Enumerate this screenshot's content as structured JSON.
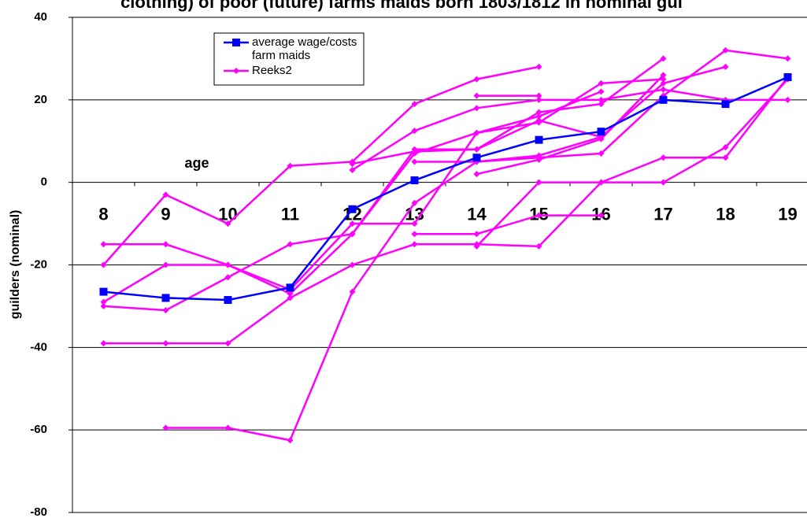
{
  "chart_data": {
    "type": "line",
    "title": "clothing) of poor (future) farms maids born 1803/1812 in nominal gui",
    "x_label": "age",
    "y_label": "guilders (nominal)",
    "categories": [
      "8",
      "9",
      "10",
      "11",
      "12",
      "13",
      "14",
      "15",
      "16",
      "17",
      "18",
      "19"
    ],
    "ylim": [
      -80,
      40
    ],
    "yticks": [
      -80,
      -60,
      -40,
      -20,
      0,
      20,
      40
    ],
    "grid": true,
    "legend": "top-left",
    "series": [
      {
        "name": "average wage/costs farm maids",
        "color": "#0000ff",
        "marker": "square",
        "values": [
          -26.5,
          -28,
          -28.5,
          -25.5,
          -6.5,
          0.5,
          6,
          10.3,
          12.3,
          20,
          19,
          25.5
        ]
      },
      {
        "name": "Reeks2",
        "color": "#ff00ff",
        "marker": "diamond",
        "values": [
          -20,
          -3,
          -10,
          4,
          5,
          19,
          25,
          28,
          null,
          null,
          null,
          null
        ]
      },
      {
        "color": "#ff00ff",
        "marker": "diamond",
        "values": [
          -15,
          -15,
          -20,
          -26,
          -10,
          -10,
          12,
          14.5,
          24,
          25,
          null,
          null
        ]
      },
      {
        "color": "#ff00ff",
        "marker": "diamond",
        "values": [
          -29,
          -20,
          -20,
          -27,
          -12.5,
          8,
          8,
          15,
          11,
          null,
          null,
          null
        ]
      },
      {
        "color": "#ff00ff",
        "marker": "diamond",
        "values": [
          -30,
          -31,
          -23,
          -15,
          -12.5,
          7,
          12,
          16,
          22,
          null,
          null,
          null
        ]
      },
      {
        "color": "#ff00ff",
        "marker": "diamond",
        "values": [
          -39,
          -39,
          -39,
          -28,
          -20,
          -15,
          -15,
          -15.5,
          0,
          0,
          8.5,
          25
        ]
      },
      {
        "color": "#ff00ff",
        "marker": "diamond",
        "values": [
          null,
          -59.5,
          -59.5,
          -62.5,
          -26.5,
          -5,
          5,
          6,
          7,
          21,
          32,
          30
        ]
      },
      {
        "color": "#ff00ff",
        "marker": "diamond",
        "values": [
          null,
          null,
          null,
          null,
          3,
          12.5,
          18,
          20,
          20,
          22.5,
          20,
          20
        ]
      },
      {
        "color": "#ff00ff",
        "marker": "diamond",
        "values": [
          null,
          null,
          null,
          null,
          4.5,
          7.5,
          8,
          17,
          19,
          30,
          null,
          null
        ]
      },
      {
        "color": "#ff00ff",
        "marker": "diamond",
        "values": [
          null,
          null,
          null,
          null,
          null,
          -12.5,
          -12.5,
          -8,
          -8,
          null,
          null,
          null
        ]
      },
      {
        "color": "#ff00ff",
        "marker": "diamond",
        "values": [
          null,
          null,
          null,
          null,
          null,
          5,
          5,
          6.5,
          11,
          24,
          28,
          null
        ]
      },
      {
        "color": "#ff00ff",
        "marker": "diamond",
        "values": [
          null,
          null,
          null,
          null,
          null,
          null,
          21,
          21,
          null,
          null,
          null,
          null
        ]
      },
      {
        "color": "#ff00ff",
        "marker": "diamond",
        "values": [
          null,
          null,
          null,
          null,
          null,
          null,
          2,
          5.5,
          10.5,
          26,
          null,
          null
        ]
      },
      {
        "color": "#ff00ff",
        "marker": "diamond",
        "values": [
          null,
          null,
          null,
          null,
          null,
          null,
          -15.5,
          0,
          0,
          6,
          6,
          25.5
        ]
      }
    ]
  }
}
